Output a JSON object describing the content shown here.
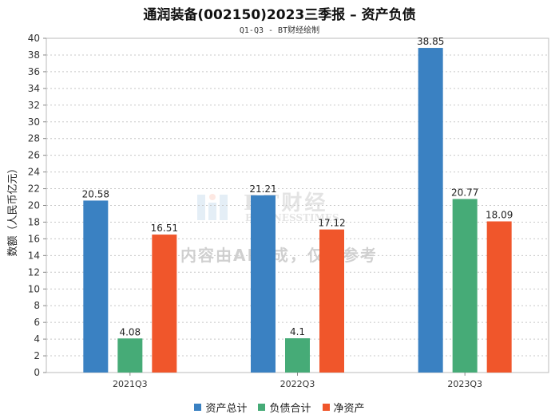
{
  "header": {
    "title": "通润装备(002150)2023三季报 – 资产负债",
    "subtitle": "Q1-Q3 - BT财经绘制"
  },
  "watermark": {
    "brand": "BT财经",
    "brand_sub": "BUSINESSTIMES",
    "notice": "内容由AI生成，仅供参考"
  },
  "chart_data": {
    "type": "bar",
    "title": "通润装备(002150)2023三季报 – 资产负债",
    "subtitle": "Q1-Q3 - BT财经绘制",
    "xlabel": "",
    "ylabel": "数额（人民币亿元）",
    "ylim": [
      0,
      40
    ],
    "ytick_step": 2,
    "grid": true,
    "legend_position": "bottom",
    "categories": [
      "2021Q3",
      "2022Q3",
      "2023Q3"
    ],
    "series": [
      {
        "name": "资产总计",
        "color": "#3a81c2",
        "values": [
          20.58,
          21.21,
          38.85
        ],
        "labels": [
          "20.58",
          "21.21",
          "38.85"
        ]
      },
      {
        "name": "负债合计",
        "color": "#46ab77",
        "values": [
          4.08,
          4.1,
          20.77
        ],
        "labels": [
          "4.08",
          "4.1",
          "20.77"
        ]
      },
      {
        "name": "净资产",
        "color": "#f0562b",
        "values": [
          16.51,
          17.12,
          18.09
        ],
        "labels": [
          "16.51",
          "17.12",
          "18.09"
        ]
      }
    ]
  }
}
